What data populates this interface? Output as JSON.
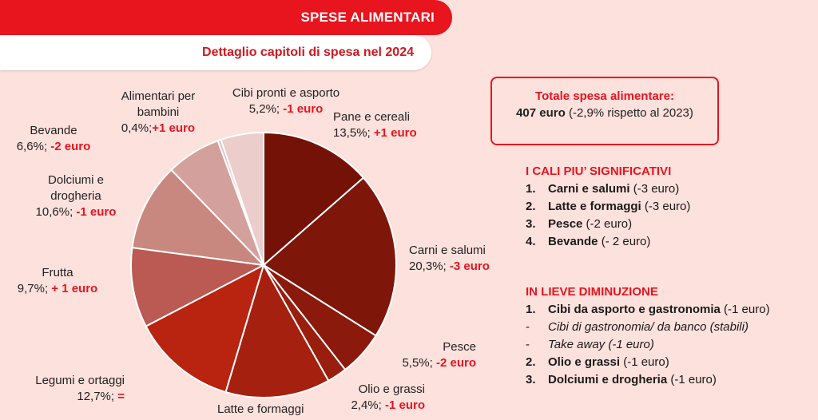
{
  "header": {
    "title": "SPESE ALIMENTARI",
    "subtitle": "Dettaglio capitoli di spesa nel 2024"
  },
  "chart_data": {
    "type": "pie",
    "slices": [
      {
        "name": "Pane e cereali",
        "value": 13.5,
        "pct_label": "13,5%;",
        "delta": "+1 euro",
        "color": "#751208"
      },
      {
        "name": "Carni e salumi",
        "value": 20.3,
        "pct_label": "20,3%;",
        "delta": "-3 euro",
        "color": "#7e160a"
      },
      {
        "name": "Pesce",
        "value": 5.5,
        "pct_label": "5,5%;",
        "delta": "-2 euro",
        "color": "#8b1a0c"
      },
      {
        "name": "Olio e grassi",
        "value": 2.4,
        "pct_label": "2,4%;",
        "delta": "-1 euro",
        "color": "#991e0e"
      },
      {
        "name": "Latte e formaggi",
        "value": 12.7,
        "pct_label": "",
        "delta": "",
        "color": "#a62010"
      },
      {
        "name": "Legumi e ortaggi",
        "value": 12.7,
        "pct_label": "12,7%;",
        "delta": "=",
        "color": "#b82410"
      },
      {
        "name": "Frutta",
        "value": 9.7,
        "pct_label": "9,7%;",
        "delta": "+ 1 euro",
        "color": "#ba5a52"
      },
      {
        "name": "Dolciumi e drogheria",
        "value": 10.6,
        "pct_label": "10,6%;",
        "delta": "-1 euro",
        "color": "#c88880"
      },
      {
        "name": "Bevande",
        "value": 6.6,
        "pct_label": "6,6%;",
        "delta": "-2 euro",
        "color": "#d4a09c"
      },
      {
        "name": "Alimentari per bambini",
        "value": 0.4,
        "pct_label": "0,4%;",
        "delta": "+1 euro",
        "color": "#e4c0bc"
      },
      {
        "name": "Cibi pronti e asporto",
        "value": 5.2,
        "pct_label": "5,2%;",
        "delta": "-1 euro",
        "color": "#ebcdcb"
      }
    ]
  },
  "labels": {
    "pane_name": "Pane e cereali",
    "carni_name": "Carni e salumi",
    "pesce_name": "Pesce",
    "olio_name": "Olio e grassi",
    "latte_name": "Latte e formaggi",
    "legumi_name": "Legumi e ortaggi",
    "frutta_name": "Frutta",
    "dolci_name_1": "Dolciumi e",
    "dolci_name_2": "drogheria",
    "bevande_name": "Bevande",
    "bambini_name_1": "Alimentari per",
    "bambini_name_2": "bambini",
    "cibi_name": "Cibi pronti e asporto"
  },
  "total": {
    "title": "Totale spesa alimentare:",
    "amount": "407 euro",
    "note": "(-2,9% rispetto al 2023)"
  },
  "cali": {
    "heading": "I CALI PIU’ SIGNIFICATIVI",
    "items": [
      {
        "num": "1.",
        "name": "Carni e salumi",
        "value": "(-3 euro)"
      },
      {
        "num": "2.",
        "name": "Latte e formaggi",
        "value": "(-3 euro)"
      },
      {
        "num": "3.",
        "name": "Pesce",
        "value": "(-2 euro)"
      },
      {
        "num": "4.",
        "name": "Bevande",
        "value": "(- 2 euro)"
      }
    ]
  },
  "lieve": {
    "heading": "IN LIEVE DIMINUZIONE",
    "item1": {
      "num": "1.",
      "name": "Cibi da asporto e gastronomia",
      "value": "(-1 euro)"
    },
    "sub1": {
      "dash": "-",
      "text": "Cibi di gastronomia/ da banco (stabili)"
    },
    "sub2": {
      "dash": "-",
      "text": "Take away (-1 euro)"
    },
    "item2": {
      "num": "2.",
      "name": "Olio e grassi",
      "value": "(-1 euro)"
    },
    "item3": {
      "num": "3.",
      "name": "Dolciumi e drogheria",
      "value": "(-1 euro)"
    }
  }
}
